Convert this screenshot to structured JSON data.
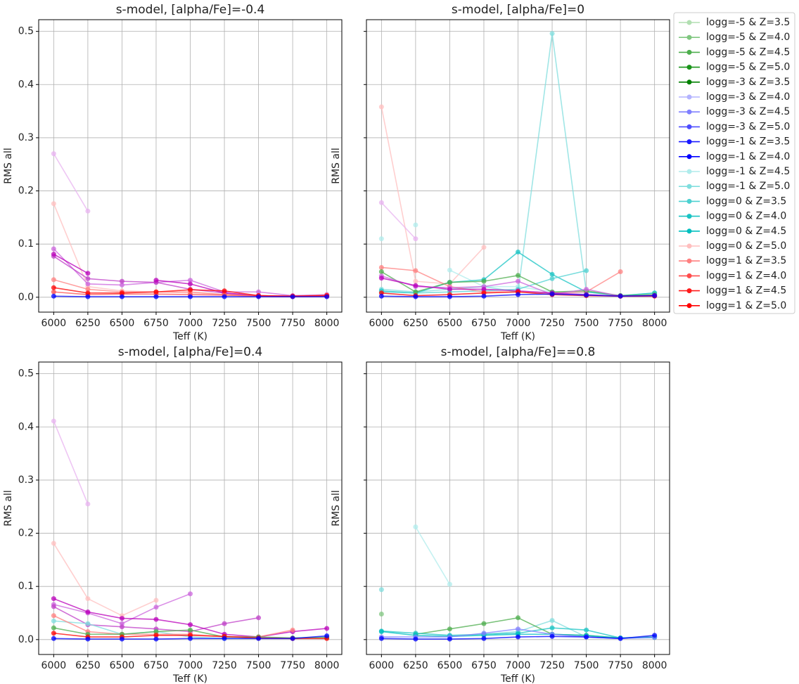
{
  "chart_data": [
    {
      "type": "line",
      "title": "s-model, [alpha/Fe]=-0.4",
      "xlabel": "Teff (K)",
      "ylabel": "RMS all",
      "x": [
        6000,
        6250,
        6500,
        6750,
        7000,
        7250,
        7500,
        7750,
        8000
      ],
      "xlim": [
        5890,
        8110
      ],
      "xticks": [
        6000,
        6250,
        6500,
        6750,
        7000,
        7250,
        7500,
        7750,
        8000
      ],
      "ylim": [
        -0.028,
        0.522
      ],
      "yticks": [
        {
          "value": 0,
          "label": "0.0"
        },
        0.1,
        0.2,
        0.3,
        0.4,
        0.5
      ],
      "show_ytick_labels": true,
      "grid": true,
      "series": [
        {
          "color": "#e8b3f0",
          "values": [
            0.27,
            0.162,
            null,
            null,
            null,
            null,
            null,
            null,
            null
          ]
        },
        {
          "color": "#ffbfbf",
          "values": [
            0.176,
            0.02,
            0.012,
            0.01,
            0.008,
            0.005,
            0.003,
            0.002,
            0.003
          ]
        },
        {
          "color": "#cc66dd",
          "values": [
            0.091,
            0.025,
            0.023,
            0.028,
            0.032,
            0.01,
            0.01,
            0.003,
            0.005
          ]
        },
        {
          "color": "#c040c8",
          "values": [
            0.077,
            0.035,
            0.03,
            0.028,
            0.015,
            0.008,
            0.003,
            0.002,
            0.004
          ]
        },
        {
          "color": "#bb00bb",
          "values": [
            0.081,
            0.045,
            null,
            0.032,
            0.025,
            0.008,
            0.003,
            0.002,
            0.003
          ]
        },
        {
          "color": "#ff8080",
          "values": [
            0.033,
            0.015,
            0.01,
            0.01,
            0.01,
            0.005,
            0.003,
            0.002,
            0.004
          ]
        },
        {
          "color": "#ff4d4d",
          "values": [
            0.01,
            0.005,
            0.006,
            0.006,
            0.005,
            0.004,
            0.002,
            0.001,
            0.002
          ]
        },
        {
          "color": "#ff0000",
          "values": [
            0.018,
            0.008,
            0.008,
            0.01,
            0.014,
            0.012,
            0.003,
            0.002,
            0.003
          ]
        },
        {
          "color": "#0000ff",
          "values": [
            0.002,
            0.001,
            0.001,
            0.001,
            0.001,
            0.001,
            0.001,
            0.001,
            0.001
          ]
        }
      ]
    },
    {
      "type": "line",
      "title": "s-model, [alpha/Fe]=0",
      "xlabel": "Teff (K)",
      "ylabel": "RMS all",
      "x": [
        6000,
        6250,
        6500,
        6750,
        7000,
        7250,
        7500,
        7750,
        8000
      ],
      "xlim": [
        5890,
        8110
      ],
      "xticks": [
        6000,
        6250,
        6500,
        6750,
        7000,
        7250,
        7500,
        7750,
        8000
      ],
      "ylim": [
        -0.028,
        0.522
      ],
      "yticks": [
        {
          "value": 0,
          "label": "0.0"
        },
        0.1,
        0.2,
        0.3,
        0.4,
        0.5
      ],
      "show_ytick_labels": false,
      "grid": true,
      "series": [
        {
          "color": "#ffbfbf",
          "values": [
            0.358,
            0.03,
            0.025,
            0.094,
            null,
            null,
            null,
            null,
            null
          ]
        },
        {
          "color": "#e8b3f0",
          "values": [
            0.178,
            0.11,
            null,
            null,
            null,
            null,
            null,
            null,
            null
          ]
        },
        {
          "color": "#b0ecec",
          "values": [
            0.11,
            null,
            0.051,
            0.02,
            0.02,
            0.01,
            0.008,
            null,
            null
          ]
        },
        {
          "color": "#b0ecec",
          "values": [
            null,
            0.136,
            null,
            0.02,
            null,
            null,
            null,
            null,
            null
          ]
        },
        {
          "color": "#80dede",
          "values": [
            0.015,
            0.01,
            0.015,
            0.02,
            0.01,
            0.496,
            0.01,
            0.003,
            0.008
          ]
        },
        {
          "color": "#1ac4c4",
          "values": [
            0.012,
            0.008,
            0.028,
            0.033,
            0.085,
            0.043,
            0.01,
            0.003,
            0.008
          ]
        },
        {
          "color": "#4dd1d1",
          "values": [
            0.01,
            0.008,
            0.01,
            0.012,
            0.015,
            0.035,
            0.05,
            null,
            null
          ]
        },
        {
          "color": "#ff8080",
          "values": [
            0.056,
            0.05,
            0.02,
            0.01,
            0.01,
            0.008,
            0.01,
            0.048,
            null
          ]
        },
        {
          "color": "#4dae4d",
          "values": [
            0.048,
            0.01,
            0.028,
            0.03,
            0.041,
            0.01,
            0.012,
            0.003,
            0.005
          ]
        },
        {
          "color": "#cc66dd",
          "values": [
            0.04,
            0.02,
            0.018,
            0.02,
            0.03,
            0.005,
            0.015,
            0.002,
            0.003
          ]
        },
        {
          "color": "#bb00bb",
          "values": [
            0.036,
            0.022,
            0.015,
            0.015,
            0.012,
            0.008,
            0.005,
            0.002,
            0.003
          ]
        },
        {
          "color": "#ff0000",
          "values": [
            0.008,
            0.003,
            0.005,
            0.008,
            0.01,
            0.005,
            0.003,
            0.002,
            0.002
          ]
        },
        {
          "color": "#0000ff",
          "values": [
            0.002,
            0.001,
            0.001,
            0.002,
            0.005,
            0.006,
            0.004,
            0.002,
            0.003
          ]
        }
      ]
    },
    {
      "type": "line",
      "title": "s-model, [alpha/Fe]=0.4",
      "xlabel": "Teff (K)",
      "ylabel": "RMS all",
      "x": [
        6000,
        6250,
        6500,
        6750,
        7000,
        7250,
        7500,
        7750,
        8000
      ],
      "xlim": [
        5890,
        8110
      ],
      "xticks": [
        6000,
        6250,
        6500,
        6750,
        7000,
        7250,
        7500,
        7750,
        8000
      ],
      "ylim": [
        -0.028,
        0.522
      ],
      "yticks": [
        {
          "value": 0,
          "label": "0.0"
        },
        0.1,
        0.2,
        0.3,
        0.4,
        0.5
      ],
      "show_ytick_labels": true,
      "grid": true,
      "series": [
        {
          "color": "#e8b3f0",
          "values": [
            0.411,
            0.255,
            null,
            null,
            null,
            null,
            null,
            null,
            null
          ]
        },
        {
          "color": "#ffbfbf",
          "values": [
            0.181,
            0.077,
            0.045,
            0.074,
            null,
            null,
            null,
            null,
            null
          ]
        },
        {
          "color": "#cc66dd",
          "values": [
            0.066,
            0.05,
            0.03,
            0.061,
            0.086,
            null,
            null,
            null,
            null
          ]
        },
        {
          "color": "#c040c8",
          "values": [
            0.062,
            0.028,
            0.024,
            0.02,
            0.015,
            0.03,
            0.041,
            null,
            null
          ]
        },
        {
          "color": "#bb00bb",
          "values": [
            0.077,
            0.052,
            0.04,
            0.038,
            0.028,
            0.01,
            0.005,
            0.015,
            0.021
          ]
        },
        {
          "color": "#80dede",
          "values": [
            0.035,
            0.03,
            0.01,
            0.015,
            0.005,
            0.002,
            0.003,
            0.003,
            0.005
          ]
        },
        {
          "color": "#ff8080",
          "values": [
            0.045,
            0.015,
            0.01,
            0.01,
            0.01,
            0.005,
            0.005,
            0.018,
            null
          ]
        },
        {
          "color": "#4dae4d",
          "values": [
            0.022,
            0.01,
            0.01,
            0.015,
            0.018,
            0.005,
            0.005,
            0.003,
            0.004
          ]
        },
        {
          "color": "#ff0000",
          "values": [
            0.012,
            0.005,
            0.005,
            0.008,
            0.008,
            0.006,
            0.003,
            0.002,
            0.002
          ]
        },
        {
          "color": "#0000ff",
          "values": [
            0.002,
            0.001,
            0.001,
            0.001,
            0.002,
            0.002,
            0.002,
            0.002,
            0.007
          ]
        }
      ]
    },
    {
      "type": "line",
      "title": "s-model, [alpha/Fe]==0.8",
      "xlabel": "Teff (K)",
      "ylabel": "RMS all",
      "x": [
        6000,
        6250,
        6500,
        6750,
        7000,
        7250,
        7500,
        7750,
        8000
      ],
      "xlim": [
        5890,
        8110
      ],
      "xticks": [
        6000,
        6250,
        6500,
        6750,
        7000,
        7250,
        7500,
        7750,
        8000
      ],
      "ylim": [
        -0.028,
        0.522
      ],
      "yticks": [
        {
          "value": 0,
          "label": "0.0"
        },
        0.1,
        0.2,
        0.3,
        0.4,
        0.5
      ],
      "show_ytick_labels": false,
      "grid": true,
      "series": [
        {
          "color": "#b0ecec",
          "values": [
            null,
            0.212,
            0.104,
            null,
            null,
            null,
            null,
            null,
            null
          ]
        },
        {
          "color": "#80dede",
          "values": [
            0.094,
            null,
            null,
            0.01,
            0.015,
            0.036,
            0.005,
            0.003,
            0.005
          ]
        },
        {
          "color": "#80c780",
          "values": [
            0.048,
            null,
            null,
            null,
            null,
            null,
            null,
            null,
            null
          ]
        },
        {
          "color": "#4dae4d",
          "values": [
            null,
            0.01,
            0.02,
            0.03,
            0.041,
            0.01,
            0.008,
            0.003,
            0.005
          ]
        },
        {
          "color": "#1ac4c4",
          "values": [
            0.016,
            0.012,
            0.008,
            0.01,
            0.012,
            0.022,
            0.018,
            0.003,
            0.005
          ]
        },
        {
          "color": "#00bfbf",
          "values": [
            0.015,
            0.008,
            0.006,
            0.008,
            0.01,
            0.01,
            0.008,
            0.003,
            0.004
          ]
        },
        {
          "color": "#8080ff",
          "values": [
            0.005,
            0.005,
            0.005,
            0.012,
            0.02,
            0.01,
            0.005,
            0.002,
            0.004
          ]
        },
        {
          "color": "#0000ff",
          "values": [
            0.002,
            0.001,
            0.001,
            0.002,
            0.005,
            0.006,
            0.005,
            0.002,
            0.008
          ]
        }
      ]
    }
  ],
  "legend": [
    {
      "name": "logg=-5 & Z=3.5",
      "color": "#b2dfb2"
    },
    {
      "name": "logg=-5 & Z=4.0",
      "color": "#80c780"
    },
    {
      "name": "logg=-5 & Z=4.5",
      "color": "#4dae4d"
    },
    {
      "name": "logg=-5 & Z=5.0",
      "color": "#1a941a"
    },
    {
      "name": "logg=-3 & Z=3.5",
      "color": "#008000"
    },
    {
      "name": "logg=-3 & Z=4.0",
      "color": "#b3b3ff"
    },
    {
      "name": "logg=-3 & Z=4.5",
      "color": "#8080ff"
    },
    {
      "name": "logg=-3 & Z=5.0",
      "color": "#4d4dff"
    },
    {
      "name": "logg=-1 & Z=3.5",
      "color": "#1a1aff"
    },
    {
      "name": "logg=-1 & Z=4.0",
      "color": "#0000ff"
    },
    {
      "name": "logg=-1 & Z=4.5",
      "color": "#b0ecec"
    },
    {
      "name": "logg=-1 & Z=5.0",
      "color": "#80dede"
    },
    {
      "name": "logg=0 & Z=3.5",
      "color": "#4dd1d1"
    },
    {
      "name": "logg=0 & Z=4.0",
      "color": "#1ac4c4"
    },
    {
      "name": "logg=0 & Z=4.5",
      "color": "#00bfbf"
    },
    {
      "name": "logg=0 & Z=5.0",
      "color": "#ffbfbf"
    },
    {
      "name": "logg=1 & Z=3.5",
      "color": "#ff8080"
    },
    {
      "name": "logg=1 & Z=4.0",
      "color": "#ff4d4d"
    },
    {
      "name": "logg=1 & Z=4.5",
      "color": "#ff1a1a"
    },
    {
      "name": "logg=1 & Z=5.0",
      "color": "#ff0000"
    }
  ]
}
